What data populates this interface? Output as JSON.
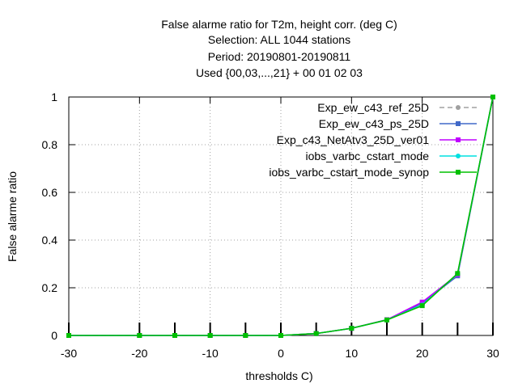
{
  "chart_data": {
    "type": "line",
    "title_lines": [
      "False alarme ratio  for T2m, height corr. (deg C)",
      "Selection: ALL    1044 stations",
      "Period: 20190801-20190811",
      "Used {00,03,...,21} + 00 01 02 03"
    ],
    "xlabel": "thresholds C)",
    "ylabel": "False alarme ratio",
    "xlim": [
      -30,
      30
    ],
    "ylim": [
      0,
      1
    ],
    "xticks": [
      -30,
      -20,
      -10,
      0,
      10,
      20,
      30
    ],
    "yticks": [
      0,
      0.2,
      0.4,
      0.6,
      0.8,
      1
    ],
    "ytick_labels": [
      "0",
      "0.2",
      "0.4",
      "0.6",
      "0.8",
      "1"
    ],
    "grid": true,
    "legend_position": "top-right",
    "x": [
      -30,
      -20,
      -15,
      -10,
      -5,
      0,
      5,
      10,
      15,
      20,
      25,
      30
    ],
    "series": [
      {
        "name": "Exp_ew_c43_ref_25D",
        "color": "#a0a0a0",
        "dash": true,
        "marker": "circle",
        "values": [
          0,
          0,
          0,
          0,
          0,
          0,
          0.008,
          0.03,
          0.065,
          0.13,
          0.255,
          1.0
        ]
      },
      {
        "name": "Exp_ew_c43_ps_25D",
        "color": "#4169c8",
        "dash": false,
        "marker": "square",
        "values": [
          0,
          0,
          0,
          0,
          0,
          0,
          0.008,
          0.03,
          0.066,
          0.135,
          0.25,
          1.0
        ]
      },
      {
        "name": "Exp_c43_NetAtv3_25D_ver01",
        "color": "#c000ff",
        "dash": false,
        "marker": "square",
        "values": [
          0,
          0,
          0,
          0,
          0,
          0,
          0.008,
          0.03,
          0.066,
          0.14,
          0.255,
          1.0
        ]
      },
      {
        "name": "iobs_varbc_cstart_mode",
        "color": "#00e0e0",
        "dash": false,
        "marker": "circle",
        "values": [
          0,
          0,
          0,
          0,
          0,
          0,
          0.008,
          0.03,
          0.065,
          0.128,
          0.258,
          1.0
        ]
      },
      {
        "name": "iobs_varbc_cstart_mode_synop",
        "color": "#00c000",
        "dash": false,
        "marker": "square",
        "values": [
          0,
          0,
          0,
          0,
          0,
          0,
          0.008,
          0.03,
          0.065,
          0.125,
          0.26,
          1.0
        ]
      }
    ]
  }
}
